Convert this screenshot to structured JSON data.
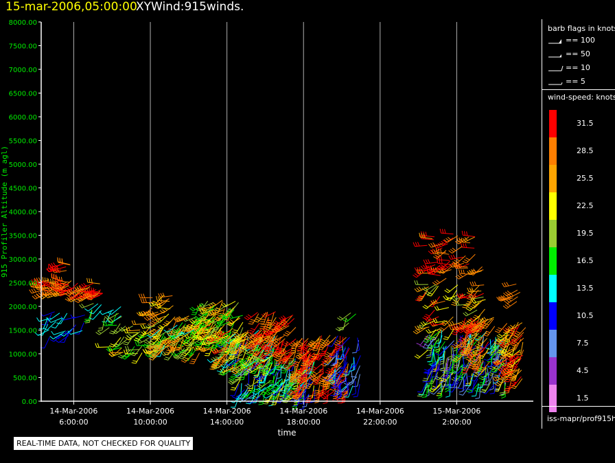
{
  "header": {
    "date": "15-mar-2006,05:00:00",
    "title": "XYWind:915winds."
  },
  "chart_data": {
    "type": "scatter",
    "title": "XYWind:915winds.",
    "ylabel": "915 Profiler Altitude (m agl)",
    "xlabel": "time",
    "ylim": [
      0,
      8000
    ],
    "yticks": [
      "0.00",
      "500.00",
      "1000.00",
      "1500.00",
      "2000.00",
      "2500.00",
      "3000.00",
      "3500.00",
      "4000.00",
      "4500.00",
      "5000.00",
      "5500.00",
      "6000.00",
      "6500.00",
      "7000.00",
      "7500.00",
      "8000.00"
    ],
    "xlim_hours": [
      4.3,
      30.0
    ],
    "xticks": [
      {
        "hour": 6,
        "date": "14-Mar-2006",
        "time": "6:00:00"
      },
      {
        "hour": 10,
        "date": "14-Mar-2006",
        "time": "10:00:00"
      },
      {
        "hour": 14,
        "date": "14-Mar-2006",
        "time": "14:00:00"
      },
      {
        "hour": 18,
        "date": "14-Mar-2006",
        "time": "18:00:00"
      },
      {
        "hour": 22,
        "date": "14-Mar-2006",
        "time": "22:00:00"
      },
      {
        "hour": 26,
        "date": "15-Mar-2006",
        "time": "2:00:00"
      }
    ],
    "grid": "vertical",
    "clusters": [
      {
        "h0": 4.4,
        "h1": 5.9,
        "a0": 2250,
        "a1": 2550,
        "smin": 26,
        "smax": 33,
        "n": 40,
        "dir": 260
      },
      {
        "h0": 5.2,
        "h1": 5.9,
        "a0": 2700,
        "a1": 2900,
        "smin": 29,
        "smax": 33,
        "n": 8,
        "dir": 260
      },
      {
        "h0": 6.0,
        "h1": 7.6,
        "a0": 2200,
        "a1": 2500,
        "smin": 25,
        "smax": 33,
        "n": 30,
        "dir": 250
      },
      {
        "h0": 4.6,
        "h1": 6.6,
        "a0": 1350,
        "a1": 1900,
        "smin": 10,
        "smax": 15,
        "n": 24,
        "dir": 230
      },
      {
        "h0": 6.8,
        "h1": 8.6,
        "a0": 1750,
        "a1": 2100,
        "smin": 12,
        "smax": 22,
        "n": 14,
        "dir": 220
      },
      {
        "h0": 7.6,
        "h1": 10.6,
        "a0": 1000,
        "a1": 1650,
        "smin": 15,
        "smax": 25,
        "n": 40,
        "dir": 240
      },
      {
        "h0": 9.8,
        "h1": 11.4,
        "a0": 1800,
        "a1": 2250,
        "smin": 22,
        "smax": 30,
        "n": 18,
        "dir": 250
      },
      {
        "h0": 10.4,
        "h1": 13.6,
        "a0": 1000,
        "a1": 1800,
        "smin": 14,
        "smax": 30,
        "n": 120,
        "dir": 230
      },
      {
        "h0": 12.6,
        "h1": 15.0,
        "a0": 1200,
        "a1": 2150,
        "smin": 15,
        "smax": 28,
        "n": 90,
        "dir": 230
      },
      {
        "h0": 13.6,
        "h1": 16.6,
        "a0": 700,
        "a1": 1500,
        "smin": 10,
        "smax": 31,
        "n": 140,
        "dir": 220
      },
      {
        "h0": 14.6,
        "h1": 18.6,
        "a0": 100,
        "a1": 900,
        "smin": 8,
        "smax": 22,
        "n": 160,
        "dir": 210
      },
      {
        "h0": 15.6,
        "h1": 17.6,
        "a0": 1000,
        "a1": 1900,
        "smin": 26,
        "smax": 33,
        "n": 70,
        "dir": 220
      },
      {
        "h0": 17.6,
        "h1": 20.4,
        "a0": 200,
        "a1": 1400,
        "smin": 26,
        "smax": 33,
        "n": 120,
        "dir": 210
      },
      {
        "h0": 19.6,
        "h1": 21.0,
        "a0": 300,
        "a1": 1400,
        "smin": 7,
        "smax": 13,
        "n": 50,
        "dir": 200
      },
      {
        "h0": 20.0,
        "h1": 20.8,
        "a0": 1600,
        "a1": 1950,
        "smin": 16,
        "smax": 20,
        "n": 4,
        "dir": 210
      },
      {
        "h0": 24.4,
        "h1": 27.0,
        "a0": 2500,
        "a1": 3550,
        "smin": 26,
        "smax": 33,
        "n": 45,
        "dir": 250
      },
      {
        "h0": 24.4,
        "h1": 27.6,
        "a0": 1500,
        "a1": 2500,
        "smin": 19,
        "smax": 33,
        "n": 60,
        "dir": 240
      },
      {
        "h0": 24.4,
        "h1": 28.6,
        "a0": 300,
        "a1": 1500,
        "smin": 5,
        "smax": 23,
        "n": 200,
        "dir": 200
      },
      {
        "h0": 26.4,
        "h1": 28.0,
        "a0": 800,
        "a1": 1800,
        "smin": 26,
        "smax": 33,
        "n": 50,
        "dir": 220
      },
      {
        "h0": 27.2,
        "h1": 27.8,
        "a0": 2700,
        "a1": 2850,
        "smin": 26,
        "smax": 30,
        "n": 3,
        "dir": 250
      },
      {
        "h0": 28.6,
        "h1": 29.6,
        "a0": 400,
        "a1": 1700,
        "smin": 22,
        "smax": 33,
        "n": 60,
        "dir": 220
      },
      {
        "h0": 28.8,
        "h1": 29.6,
        "a0": 2100,
        "a1": 2550,
        "smin": 26,
        "smax": 30,
        "n": 8,
        "dir": 240
      }
    ]
  },
  "legend": {
    "barb_title": "barb flags in knots",
    "barb_items": [
      {
        "label": "== 100"
      },
      {
        "label": "== 50"
      },
      {
        "label": "== 10"
      },
      {
        "label": "== 5"
      }
    ],
    "speed_title": "wind-speed: knots",
    "speed_scale": [
      {
        "label": "31.5",
        "color": "#ff0000"
      },
      {
        "label": "28.5",
        "color": "#ff7f00"
      },
      {
        "label": "25.5",
        "color": "#ffa500"
      },
      {
        "label": "22.5",
        "color": "#ffff00"
      },
      {
        "label": "19.5",
        "color": "#9acd32"
      },
      {
        "label": "16.5",
        "color": "#00ee00"
      },
      {
        "label": "13.5",
        "color": "#00ffff"
      },
      {
        "label": "10.5",
        "color": "#0000ff"
      },
      {
        "label": "7.5",
        "color": "#6495ed"
      },
      {
        "label": "4.5",
        "color": "#9932cc"
      },
      {
        "label": "1.5",
        "color": "#ee82ee"
      }
    ],
    "source": "iss-mapr/prof915h"
  },
  "notice": "REAL-TIME DATA, NOT CHECKED FOR QUALITY",
  "colors": {
    "axis": "#ffffff",
    "ylabel": "#00ee00",
    "grid": "#b0b0b0",
    "date": "#ffff00"
  }
}
